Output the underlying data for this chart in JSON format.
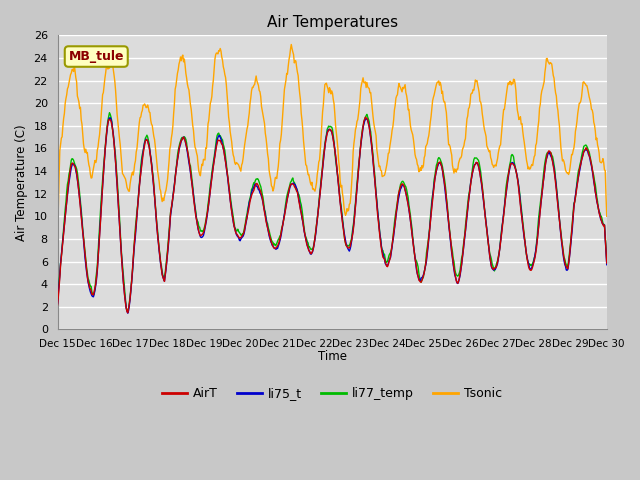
{
  "title": "Air Temperatures",
  "ylabel": "Air Temperature (C)",
  "xlabel": "Time",
  "ylim": [
    0,
    26
  ],
  "yticks": [
    0,
    2,
    4,
    6,
    8,
    10,
    12,
    14,
    16,
    18,
    20,
    22,
    24,
    26
  ],
  "annotation_text": "MB_tule",
  "annotation_color": "#8B0000",
  "annotation_bg": "#FFFFC0",
  "annotation_border": "#999900",
  "line_colors": {
    "AirT": "#CC0000",
    "li75_t": "#0000CC",
    "li77_temp": "#00BB00",
    "Tsonic": "#FFA500"
  },
  "bg_color": "#C8C8C8",
  "plot_bg": "#DCDCDC",
  "grid_color": "#FFFFFF",
  "figsize": [
    6.4,
    4.8
  ],
  "dpi": 100
}
